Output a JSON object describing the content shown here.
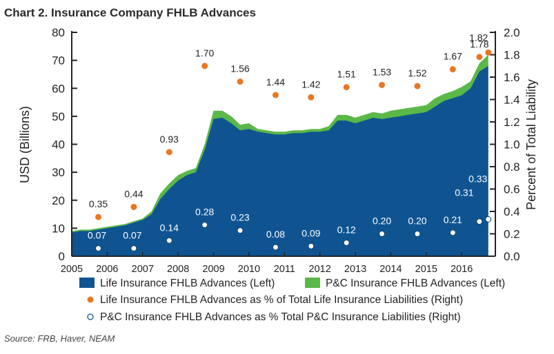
{
  "chart_data": {
    "type": "area",
    "title": "Chart 2. Insurance Company FHLB Advances",
    "ylabel_left": "USD (Billions)",
    "ylabel_right": "Percent of Total Liability",
    "ylim_left": [
      0,
      80
    ],
    "ylim_right": [
      0,
      2.0
    ],
    "yticks_left": [
      "0",
      "10",
      "20",
      "30",
      "40",
      "50",
      "60",
      "70",
      "80"
    ],
    "yticks_right": [
      "0.0",
      "0.2",
      "0.4",
      "0.6",
      "0.8",
      "1.0",
      "1.2",
      "1.4",
      "1.6",
      "1.8",
      "2.0"
    ],
    "xticks": [
      "2005",
      "2006",
      "2007",
      "2008",
      "2009",
      "2010",
      "2011",
      "2012",
      "2013",
      "2014",
      "2015",
      "2016"
    ],
    "grid": false,
    "area_series": [
      {
        "name": "Life Insurance FHLB Advances (Left)",
        "color": "#0f5491",
        "points": [
          [
            2005.0,
            8.5
          ],
          [
            2005.25,
            9.0
          ],
          [
            2005.5,
            9.0
          ],
          [
            2005.75,
            9.5
          ],
          [
            2006.0,
            10.0
          ],
          [
            2006.25,
            10.5
          ],
          [
            2006.5,
            11.0
          ],
          [
            2006.75,
            12.0
          ],
          [
            2007.0,
            13.0
          ],
          [
            2007.25,
            15.0
          ],
          [
            2007.5,
            20.5
          ],
          [
            2007.75,
            24.0
          ],
          [
            2008.0,
            27.0
          ],
          [
            2008.25,
            29.0
          ],
          [
            2008.5,
            30.0
          ],
          [
            2008.75,
            38.0
          ],
          [
            2009.0,
            49.0
          ],
          [
            2009.25,
            49.5
          ],
          [
            2009.5,
            47.5
          ],
          [
            2009.75,
            45.0
          ],
          [
            2010.0,
            45.5
          ],
          [
            2010.25,
            44.5
          ],
          [
            2010.5,
            44.0
          ],
          [
            2010.75,
            43.5
          ],
          [
            2011.0,
            43.5
          ],
          [
            2011.25,
            44.0
          ],
          [
            2011.5,
            44.0
          ],
          [
            2011.75,
            44.5
          ],
          [
            2012.0,
            44.5
          ],
          [
            2012.25,
            45.0
          ],
          [
            2012.5,
            48.5
          ],
          [
            2012.75,
            48.5
          ],
          [
            2013.0,
            47.5
          ],
          [
            2013.25,
            48.5
          ],
          [
            2013.5,
            49.5
          ],
          [
            2013.75,
            49.0
          ],
          [
            2014.0,
            49.5
          ],
          [
            2014.25,
            50.0
          ],
          [
            2014.5,
            50.5
          ],
          [
            2014.75,
            51.0
          ],
          [
            2015.0,
            51.5
          ],
          [
            2015.25,
            53.5
          ],
          [
            2015.5,
            55.5
          ],
          [
            2015.75,
            56.5
          ],
          [
            2016.0,
            57.5
          ],
          [
            2016.25,
            60.0
          ],
          [
            2016.5,
            66.0
          ],
          [
            2016.75,
            68.0
          ]
        ]
      },
      {
        "name": "P&C Insurance FHLB Advances (Left)",
        "color": "#5ab848",
        "points": [
          [
            2005.0,
            9.0
          ],
          [
            2005.25,
            9.5
          ],
          [
            2005.5,
            9.5
          ],
          [
            2005.75,
            10.0
          ],
          [
            2006.0,
            10.5
          ],
          [
            2006.25,
            11.0
          ],
          [
            2006.5,
            11.5
          ],
          [
            2006.75,
            12.5
          ],
          [
            2007.0,
            13.5
          ],
          [
            2007.25,
            16.0
          ],
          [
            2007.5,
            22.5
          ],
          [
            2007.75,
            26.0
          ],
          [
            2008.0,
            29.0
          ],
          [
            2008.25,
            30.5
          ],
          [
            2008.5,
            31.5
          ],
          [
            2008.75,
            40.0
          ],
          [
            2009.0,
            52.0
          ],
          [
            2009.25,
            52.0
          ],
          [
            2009.5,
            50.0
          ],
          [
            2009.75,
            47.0
          ],
          [
            2010.0,
            47.5
          ],
          [
            2010.25,
            45.5
          ],
          [
            2010.5,
            45.0
          ],
          [
            2010.75,
            44.5
          ],
          [
            2011.0,
            44.5
          ],
          [
            2011.25,
            45.0
          ],
          [
            2011.5,
            45.0
          ],
          [
            2011.75,
            45.5
          ],
          [
            2012.0,
            45.5
          ],
          [
            2012.25,
            46.5
          ],
          [
            2012.5,
            50.5
          ],
          [
            2012.75,
            50.5
          ],
          [
            2013.0,
            49.5
          ],
          [
            2013.25,
            50.5
          ],
          [
            2013.5,
            51.5
          ],
          [
            2013.75,
            51.0
          ],
          [
            2014.0,
            52.0
          ],
          [
            2014.25,
            52.5
          ],
          [
            2014.5,
            53.0
          ],
          [
            2014.75,
            53.5
          ],
          [
            2015.0,
            54.0
          ],
          [
            2015.25,
            56.5
          ],
          [
            2015.5,
            58.0
          ],
          [
            2015.75,
            59.0
          ],
          [
            2016.0,
            60.5
          ],
          [
            2016.25,
            62.5
          ],
          [
            2016.5,
            69.0
          ],
          [
            2016.75,
            72.0
          ]
        ]
      }
    ],
    "dot_series": [
      {
        "name": "Life Insurance FHLB Advances as % of Total Life Insurance Liabilities (Right)",
        "marker": "filled",
        "color": "#e87722",
        "points": [
          {
            "x": 2005.75,
            "y": 0.35,
            "label": "0.35"
          },
          {
            "x": 2006.75,
            "y": 0.44,
            "label": "0.44"
          },
          {
            "x": 2007.75,
            "y": 0.93,
            "label": "0.93"
          },
          {
            "x": 2008.75,
            "y": 1.7,
            "label": "1.70"
          },
          {
            "x": 2009.75,
            "y": 1.56,
            "label": "1.56"
          },
          {
            "x": 2010.75,
            "y": 1.44,
            "label": "1.44"
          },
          {
            "x": 2011.75,
            "y": 1.42,
            "label": "1.42"
          },
          {
            "x": 2012.75,
            "y": 1.51,
            "label": "1.51"
          },
          {
            "x": 2013.75,
            "y": 1.53,
            "label": "1.53"
          },
          {
            "x": 2014.75,
            "y": 1.52,
            "label": "1.52"
          },
          {
            "x": 2015.75,
            "y": 1.67,
            "label": "1.67"
          },
          {
            "x": 2016.5,
            "y": 1.78,
            "label": "1.78"
          },
          {
            "x": 2016.75,
            "y": 1.82,
            "label": "1.82"
          }
        ]
      },
      {
        "name": "P&C Insurance FHLB Advances as % Total P&C Insurance Liabilities (Right)",
        "marker": "hollow",
        "color": "#0f5491",
        "points": [
          {
            "x": 2005.75,
            "y": 0.07,
            "label": "0.07"
          },
          {
            "x": 2006.75,
            "y": 0.07,
            "label": "0.07"
          },
          {
            "x": 2007.75,
            "y": 0.14,
            "label": "0.14"
          },
          {
            "x": 2008.75,
            "y": 0.28,
            "label": "0.28"
          },
          {
            "x": 2009.75,
            "y": 0.23,
            "label": "0.23"
          },
          {
            "x": 2010.75,
            "y": 0.08,
            "label": "0.08"
          },
          {
            "x": 2011.75,
            "y": 0.09,
            "label": "0.09"
          },
          {
            "x": 2012.75,
            "y": 0.12,
            "label": "0.12"
          },
          {
            "x": 2013.75,
            "y": 0.2,
            "label": "0.20"
          },
          {
            "x": 2014.75,
            "y": 0.2,
            "label": "0.20"
          },
          {
            "x": 2015.75,
            "y": 0.21,
            "label": "0.21"
          },
          {
            "x": 2016.5,
            "y": 0.31,
            "label": "0.31"
          },
          {
            "x": 2016.75,
            "y": 0.33,
            "label": "0.33"
          }
        ]
      }
    ],
    "legend": [
      {
        "label": "Life Insurance FHLB Advances (Left)",
        "marker": "square",
        "color": "#0f5491"
      },
      {
        "label": "P&C Insurance FHLB Advances (Left)",
        "marker": "square",
        "color": "#5ab848"
      },
      {
        "label": "Life Insurance FHLB Advances as % of Total Life Insurance Liabilities (Right)",
        "marker": "dot",
        "color": "#e87722"
      },
      {
        "label": "P&C Insurance FHLB Advances as % Total P&C Insurance Liabilities (Right)",
        "marker": "ring",
        "color": "#0f5491"
      }
    ],
    "legend_position": "bottom",
    "source": "Source: FRB, Haver, NEAM"
  }
}
